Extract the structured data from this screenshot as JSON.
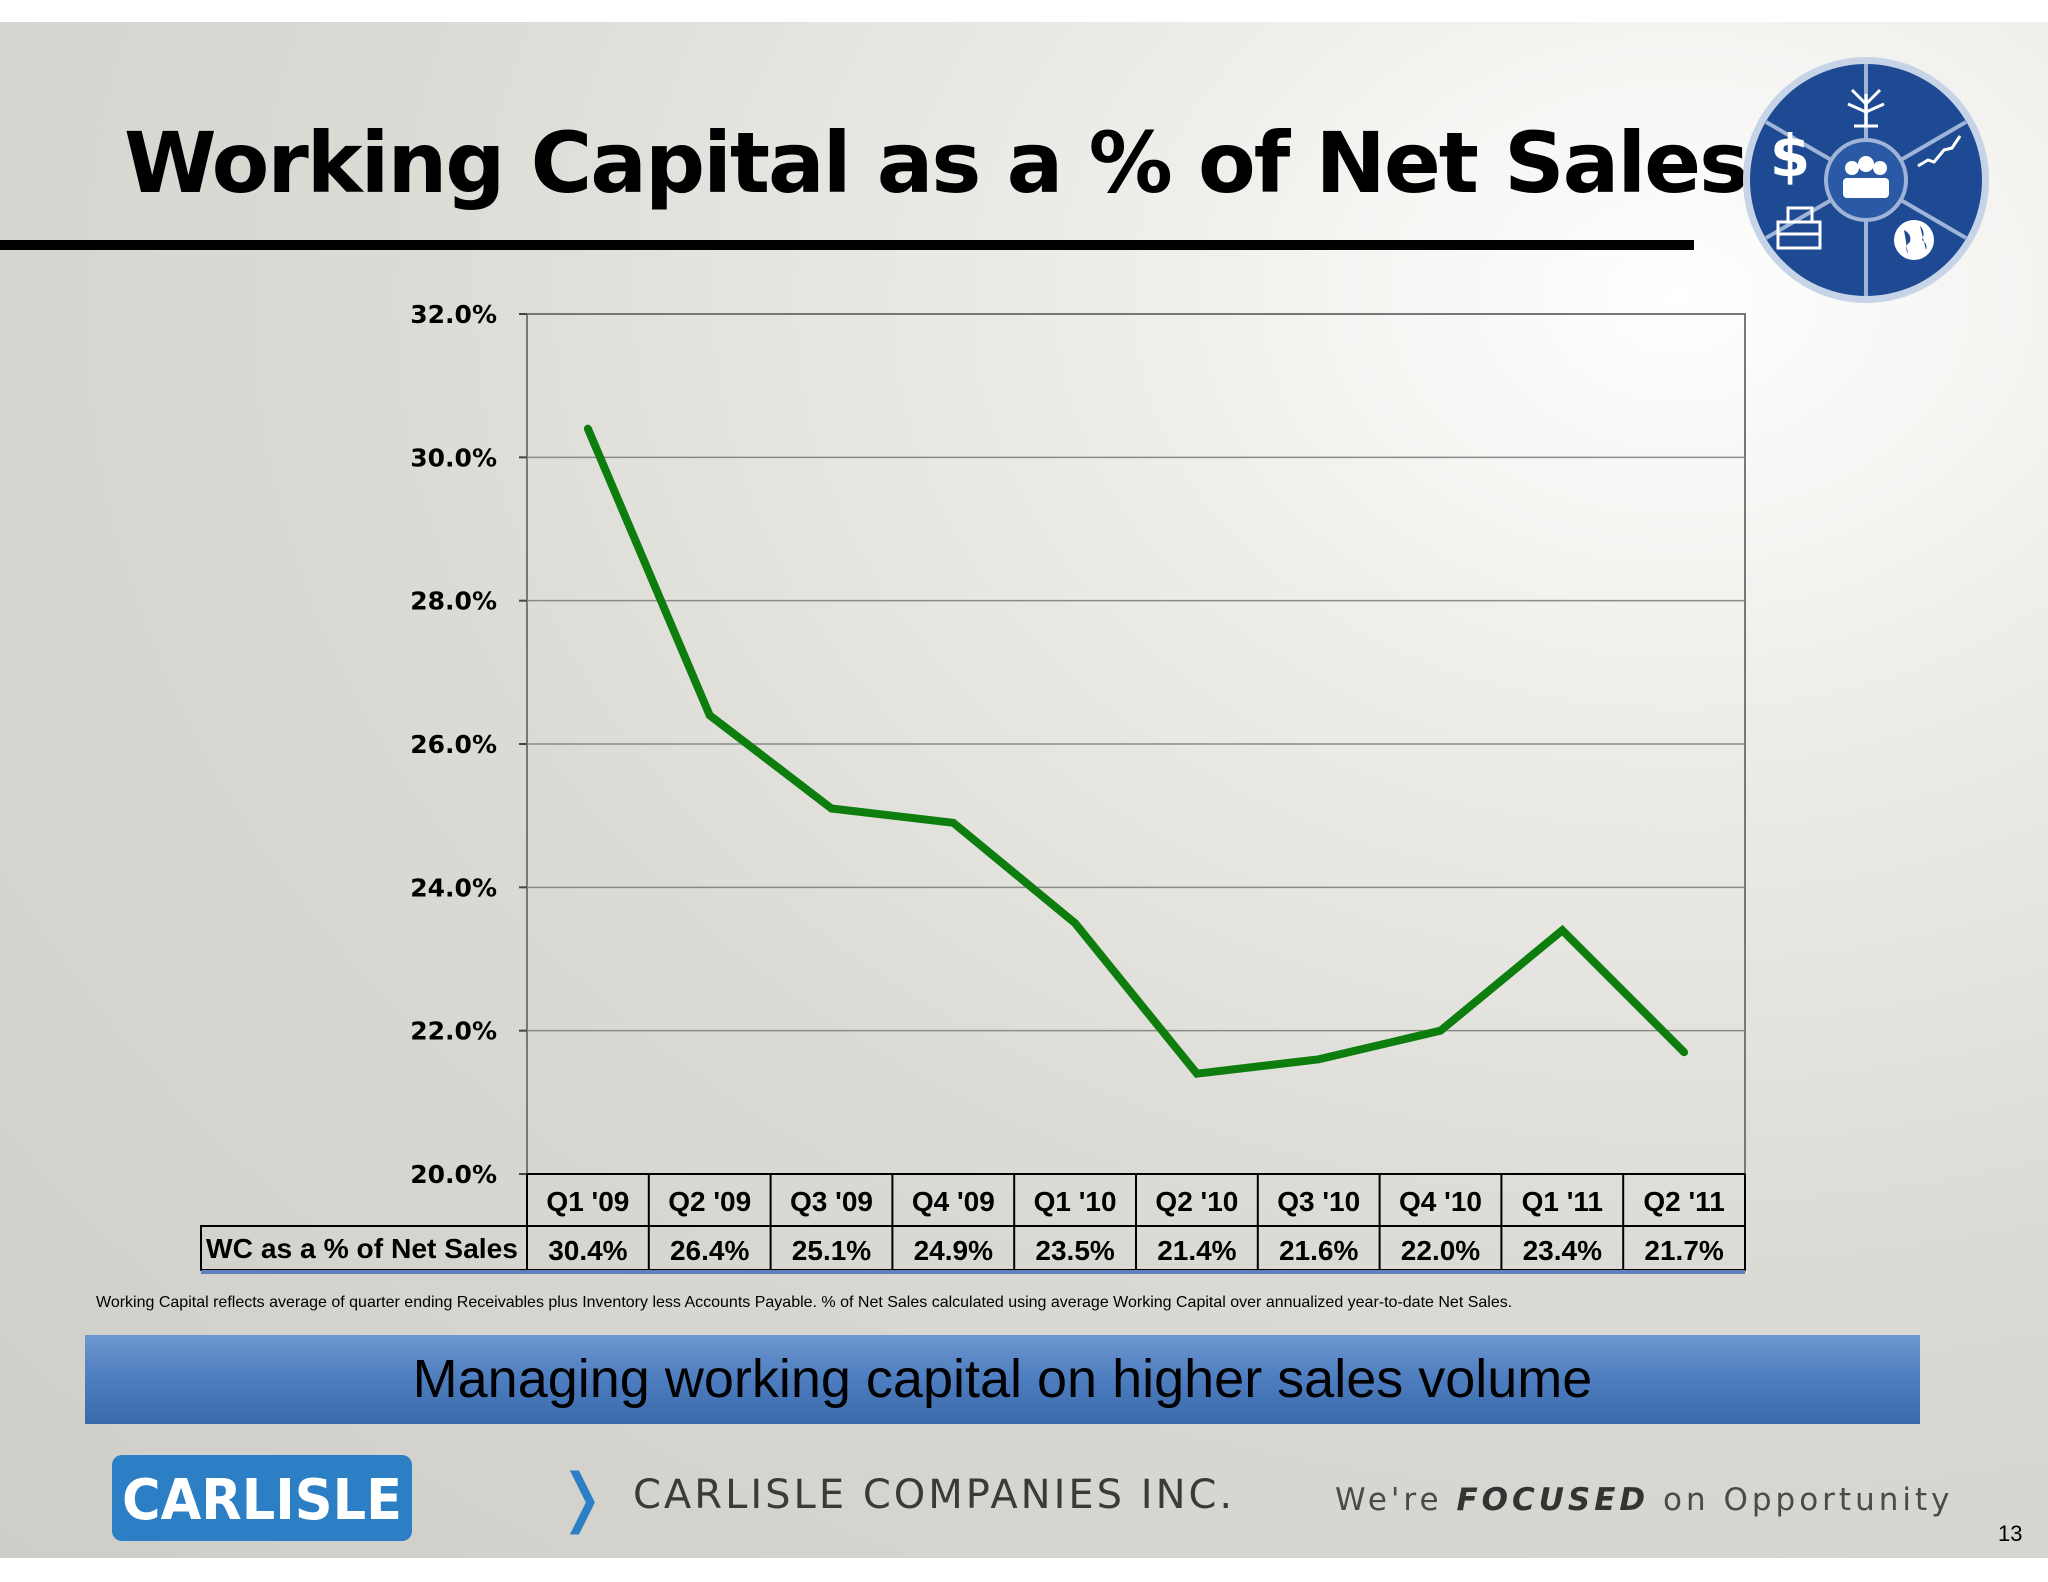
{
  "slide": {
    "title": "Working Capital as a % of Net Sales",
    "footnote": "Working Capital reflects average of quarter ending Receivables plus Inventory less Accounts Payable.  % of Net Sales calculated using average Working Capital over annualized year-to-date Net Sales.",
    "banner": "Managing working capital on higher sales volume",
    "logo_text": "CARLISLE",
    "company": "CARLISLE COMPANIES INC.",
    "tagline": {
      "pre": "We're",
      "bold": "FOCUSED",
      "post": "on Opportunity"
    },
    "page_number": "13",
    "emblem_icons": [
      "dollar-icon",
      "tree-icon",
      "growth-chart-icon",
      "people-icon",
      "building-icon",
      "globe-icon"
    ]
  },
  "colors": {
    "line": "#0d7d0d",
    "banner": "#4d7dbf",
    "emblem": "#1e4a93",
    "logo": "#2c7fc4"
  },
  "chart_data": {
    "type": "line",
    "categories": [
      "Q1 '09",
      "Q2 '09",
      "Q3 '09",
      "Q4 '09",
      "Q1 '10",
      "Q2 '10",
      "Q3 '10",
      "Q4 '10",
      "Q1 '11",
      "Q2 '11"
    ],
    "series": [
      {
        "name": "WC as a % of Net Sales",
        "values": [
          30.4,
          26.4,
          25.1,
          24.9,
          23.5,
          21.4,
          21.6,
          22.0,
          23.4,
          21.7
        ],
        "labels": [
          "30.4%",
          "26.4%",
          "25.1%",
          "24.9%",
          "23.5%",
          "21.4%",
          "21.6%",
          "22.0%",
          "23.4%",
          "21.7%"
        ]
      }
    ],
    "ylim": [
      20,
      32
    ],
    "yticks": [
      20,
      22,
      24,
      26,
      28,
      30,
      32
    ],
    "ytick_labels": [
      "20.0%",
      "22.0%",
      "24.0%",
      "26.0%",
      "28.0%",
      "30.0%",
      "32.0%"
    ],
    "grid": true,
    "legend": "data-table-below"
  }
}
